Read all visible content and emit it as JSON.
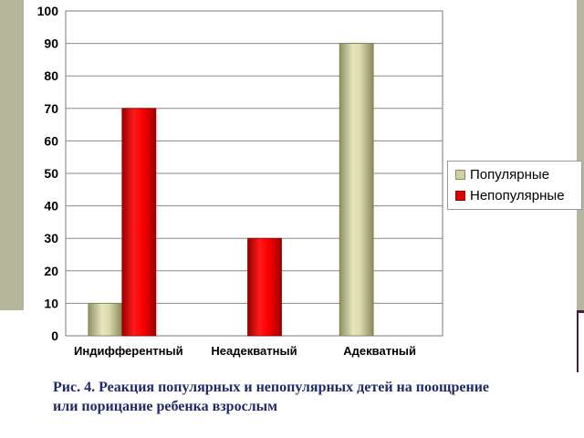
{
  "chart_data": {
    "type": "bar",
    "categories": [
      "Индифферентный",
      "Неадекватный",
      "Адекватный"
    ],
    "series": [
      {
        "name": "Популярные",
        "values": [
          10,
          0,
          90
        ],
        "color": "#cfcfa0"
      },
      {
        "name": "Непопулярные",
        "values": [
          70,
          30,
          0
        ],
        "color": "#e00000"
      }
    ],
    "ylim": [
      0,
      100
    ],
    "yticks": [
      "0",
      "10",
      "20",
      "30",
      "40",
      "50",
      "60",
      "70",
      "80",
      "90",
      "100"
    ],
    "grid": true,
    "legend": "right"
  },
  "caption": {
    "line1": "Рис. 4.  Реакция популярных и непопулярных детей на поощрение",
    "line2": "или порицание ребенка взрослым"
  },
  "colors": {
    "slide_background": "#b5b59c",
    "slide_line": "#4a1e38",
    "caption_text": "#1f2a66"
  }
}
